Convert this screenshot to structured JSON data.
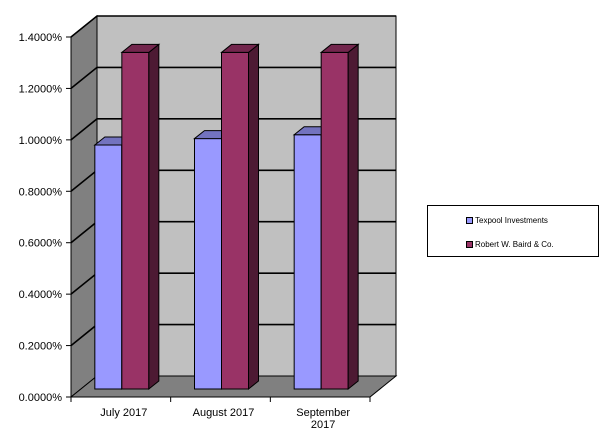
{
  "chart_data": {
    "type": "bar",
    "title": "",
    "xlabel": "",
    "ylabel": "",
    "categories": [
      "July 2017",
      "August 2017",
      "September 2017"
    ],
    "category_labels": [
      [
        "July 2017"
      ],
      [
        "August 2017"
      ],
      [
        "September",
        "2017"
      ]
    ],
    "series": [
      {
        "name": "Texpool Investments",
        "values": [
          0.98,
          1.005,
          1.02
        ],
        "color": "#9999ff"
      },
      {
        "name": "Robert W. Baird & Co.",
        "values": [
          1.34,
          1.34,
          1.34
        ],
        "color": "#993366"
      }
    ],
    "ylim": [
      0,
      1.4
    ],
    "yticks": [
      0,
      0.2,
      0.4,
      0.6,
      0.8,
      1.0,
      1.2,
      1.4
    ],
    "ytick_labels": [
      "0.0000%",
      "0.2000%",
      "0.4000%",
      "0.6000%",
      "0.8000%",
      "1.0000%",
      "1.2000%",
      "1.4000%"
    ],
    "grid": true,
    "style": "3d-clustered-column",
    "wall_color": "#c0c0c0",
    "side_wall_color": "#808080",
    "floor_color": "#808080",
    "legend_position": "right"
  }
}
